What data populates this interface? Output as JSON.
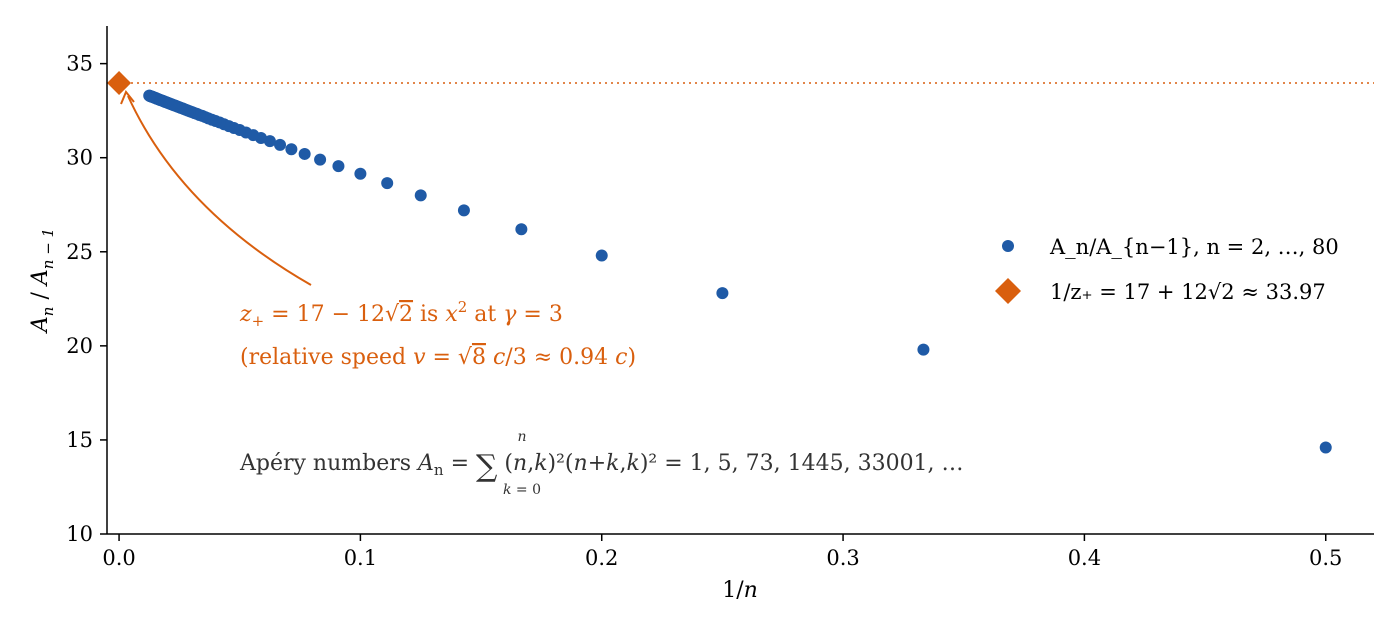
{
  "colors": {
    "points": "#1f5aa6",
    "limit": "#d95f0e",
    "text_gray": "#333333",
    "axis": "#000000"
  },
  "chart_data": {
    "type": "scatter",
    "xlabel": "1/n",
    "ylabel": "A_n / A_{n−1}",
    "xlim": [
      -0.005,
      0.52
    ],
    "ylim": [
      10,
      37
    ],
    "xticks": [
      0.0,
      0.1,
      0.2,
      0.3,
      0.4,
      0.5
    ],
    "xtick_labels": [
      "0.0",
      "0.1",
      "0.2",
      "0.3",
      "0.4",
      "0.5"
    ],
    "yticks": [
      10,
      15,
      20,
      25,
      30,
      35
    ],
    "ytick_labels": [
      "10",
      "15",
      "20",
      "25",
      "30",
      "35"
    ],
    "grid": false,
    "legend_position": "right",
    "series": [
      {
        "name": "A_n/A_{n−1}, n = 2, …, 80",
        "marker": "circle",
        "x": [
          0.5,
          0.3333,
          0.25,
          0.2,
          0.1667,
          0.1429,
          0.125,
          0.1111,
          0.1,
          0.0909,
          0.0833,
          0.0769,
          0.0714,
          0.0667,
          0.0625,
          0.0588,
          0.0556,
          0.0526,
          0.05,
          0.0476,
          0.0455,
          0.0435,
          0.0417,
          0.04,
          0.0385,
          0.037,
          0.0357,
          0.0345,
          0.0333,
          0.0323,
          0.0313,
          0.0303,
          0.0294,
          0.0286,
          0.0278,
          0.027,
          0.0263,
          0.0256,
          0.025,
          0.0244,
          0.0238,
          0.0233,
          0.0227,
          0.0222,
          0.0217,
          0.0213,
          0.0208,
          0.0204,
          0.02,
          0.0196,
          0.0192,
          0.0189,
          0.0185,
          0.0182,
          0.0179,
          0.0175,
          0.0172,
          0.0169,
          0.0167,
          0.0164,
          0.0161,
          0.0159,
          0.0156,
          0.0154,
          0.0152,
          0.0149,
          0.0147,
          0.0145,
          0.0143,
          0.0141,
          0.0139,
          0.0137,
          0.0135,
          0.0133,
          0.0132,
          0.013,
          0.0128,
          0.0127,
          0.0125
        ],
        "y": [
          14.6,
          19.8,
          22.8,
          24.8,
          26.2,
          27.2,
          28.0,
          28.65,
          29.15,
          29.55,
          29.9,
          30.2,
          30.45,
          30.68,
          30.88,
          31.05,
          31.2,
          31.34,
          31.47,
          31.58,
          31.68,
          31.78,
          31.87,
          31.95,
          32.02,
          32.09,
          32.16,
          32.22,
          32.27,
          32.33,
          32.37,
          32.42,
          32.46,
          32.5,
          32.54,
          32.58,
          32.62,
          32.65,
          32.68,
          32.71,
          32.74,
          32.77,
          32.79,
          32.82,
          32.84,
          32.86,
          32.89,
          32.91,
          32.93,
          32.95,
          32.96,
          32.98,
          33.0,
          33.02,
          33.03,
          33.05,
          33.06,
          33.08,
          33.09,
          33.1,
          33.12,
          33.13,
          33.14,
          33.15,
          33.17,
          33.18,
          33.19,
          33.2,
          33.21,
          33.22,
          33.23,
          33.24,
          33.25,
          33.26,
          33.26,
          33.27,
          33.28,
          33.29,
          33.3
        ]
      },
      {
        "name": "1/z₊ = 17 + 12√2 ≈ 33.97",
        "marker": "diamond",
        "x": [
          0.0
        ],
        "y": [
          33.97
        ]
      }
    ],
    "reference_line": {
      "y": 33.97,
      "style": "dotted"
    },
    "annotations": {
      "limit_line1": "z₊ = 17 − 12√2 is x² at γ = 3",
      "limit_line2": "(relative speed v = √8 c/3 ≈ 0.94 c)",
      "apery": "Apéry numbers  A_n = Σ_{k=0}^{n} C(n,k)² C(n+k,k)² = 1, 5, 73, 1445, 33001, …"
    }
  },
  "legend": {
    "points_label": "A_n/A_{n−1},  n = 2, …, 80",
    "limit_label": "1/z₊ = 17 + 12√2 ≈ 33.97"
  }
}
